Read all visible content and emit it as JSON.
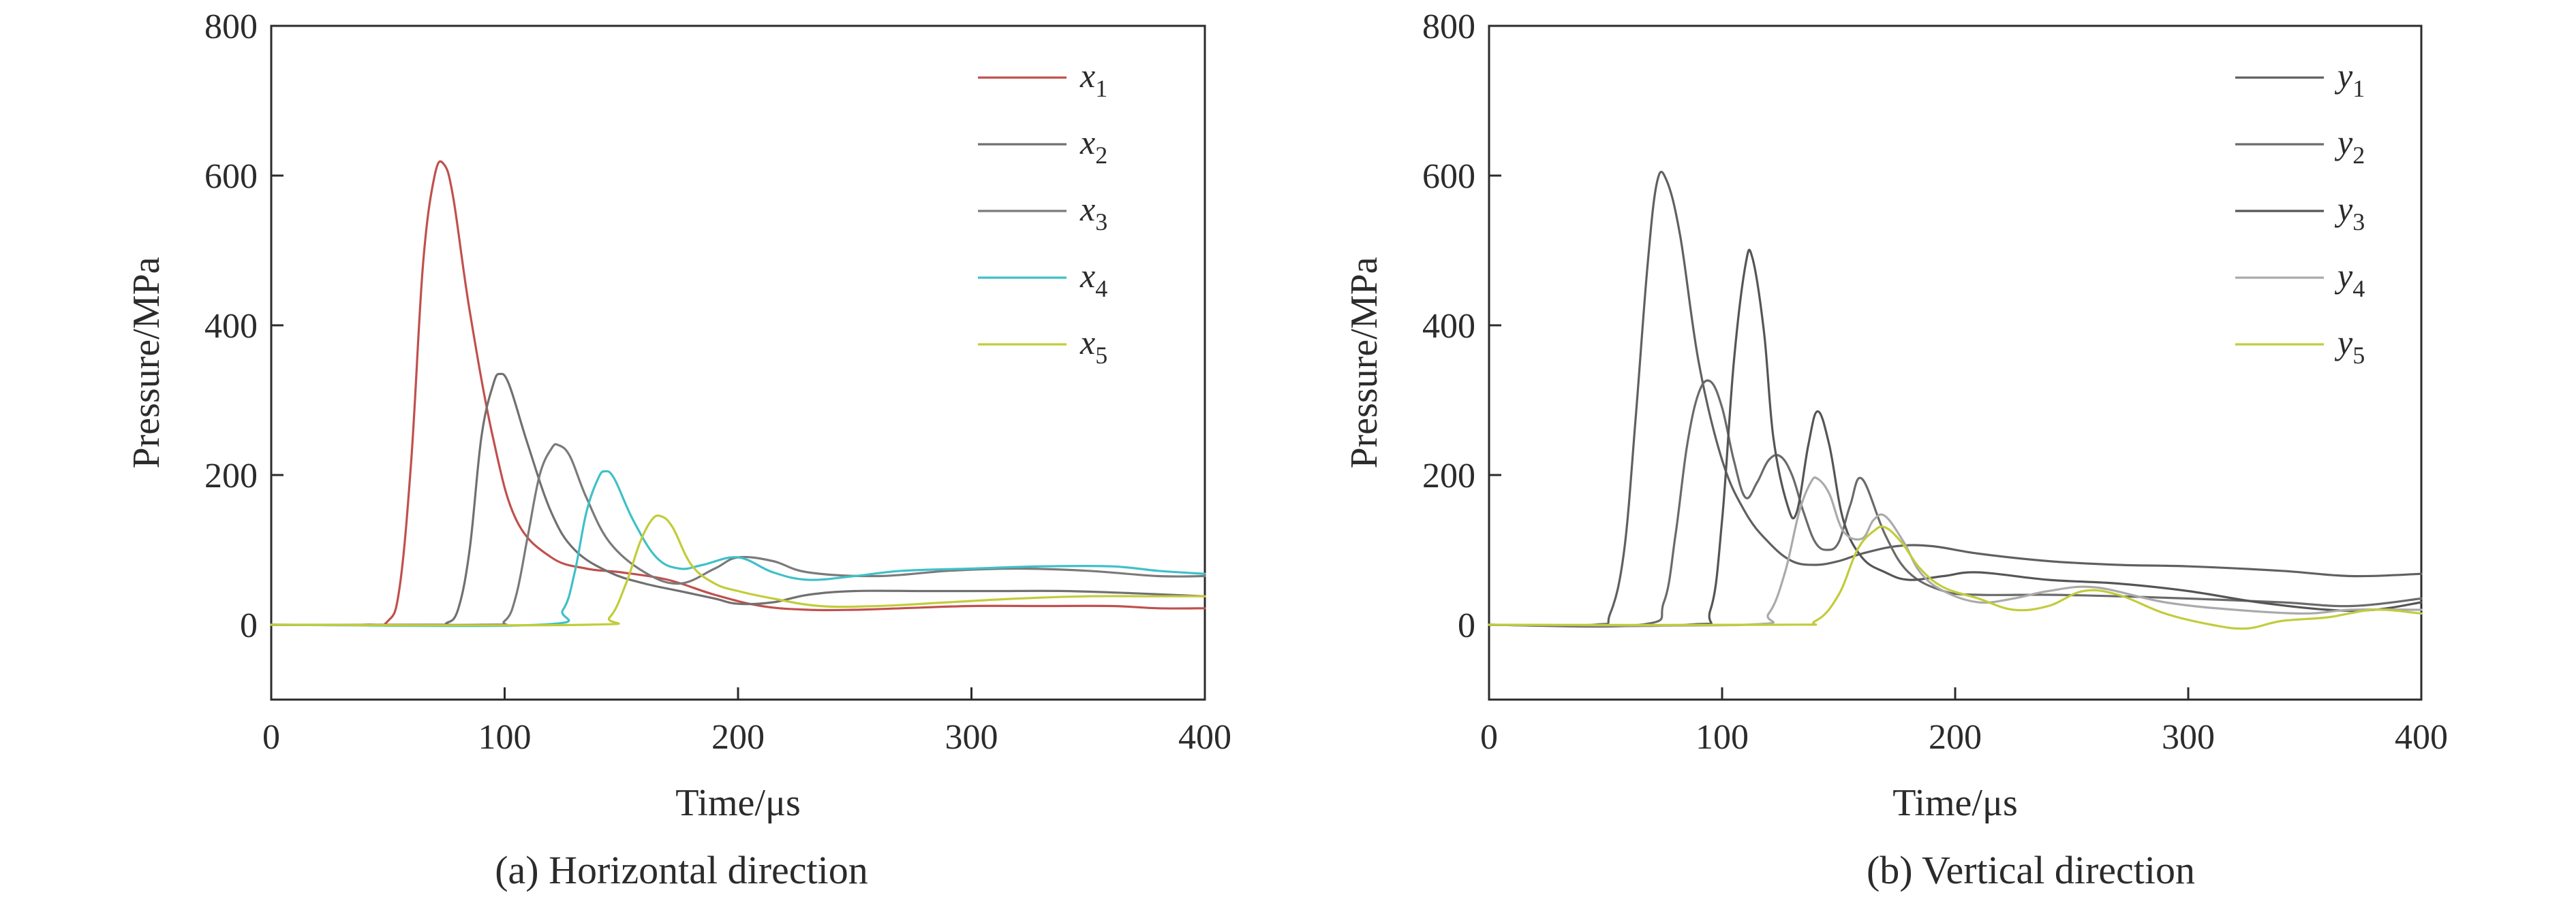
{
  "chart_data": [
    {
      "type": "line",
      "caption": "(a) Horizontal direction",
      "xlabel": "Time/μs",
      "ylabel": "Pressure/MPa",
      "xlim": [
        0,
        400
      ],
      "ylim": [
        -100,
        800
      ],
      "xticks": [
        0,
        100,
        200,
        300,
        400
      ],
      "yticks": [
        0,
        200,
        400,
        600,
        800
      ],
      "legend_position": "top-right",
      "series": [
        {
          "name": "x",
          "sub": "1",
          "color": "#c0504d",
          "x": [
            0,
            40,
            50,
            55,
            60,
            65,
            70,
            74,
            78,
            85,
            95,
            105,
            120,
            135,
            150,
            170,
            190,
            210,
            230,
            250,
            270,
            300,
            330,
            360,
            380,
            400
          ],
          "y": [
            0,
            0,
            5,
            50,
            220,
            480,
            600,
            615,
            570,
            420,
            250,
            140,
            90,
            75,
            70,
            60,
            40,
            25,
            20,
            20,
            22,
            25,
            25,
            25,
            22,
            22
          ]
        },
        {
          "name": "x",
          "sub": "2",
          "color": "#707070",
          "x": [
            0,
            70,
            75,
            80,
            85,
            90,
            95,
            98,
            102,
            110,
            120,
            130,
            145,
            160,
            175,
            190,
            200,
            215,
            230,
            250,
            280,
            310,
            340,
            370,
            400
          ],
          "y": [
            0,
            0,
            2,
            20,
            100,
            250,
            320,
            335,
            320,
            240,
            150,
            100,
            70,
            55,
            45,
            35,
            28,
            30,
            40,
            45,
            45,
            45,
            45,
            42,
            38
          ]
        },
        {
          "name": "x",
          "sub": "3",
          "color": "#7a7a7a",
          "x": [
            0,
            90,
            100,
            105,
            110,
            115,
            120,
            123,
            128,
            135,
            145,
            160,
            175,
            190,
            200,
            215,
            230,
            260,
            290,
            320,
            350,
            380,
            400
          ],
          "y": [
            0,
            0,
            5,
            40,
            120,
            200,
            235,
            240,
            225,
            170,
            110,
            70,
            55,
            75,
            90,
            85,
            70,
            65,
            72,
            75,
            72,
            65,
            65
          ]
        },
        {
          "name": "x",
          "sub": "4",
          "color": "#3fc0c8",
          "x": [
            0,
            115,
            125,
            130,
            135,
            140,
            143,
            147,
            155,
            165,
            175,
            185,
            200,
            215,
            230,
            250,
            270,
            300,
            330,
            360,
            380,
            400
          ],
          "y": [
            0,
            0,
            20,
            70,
            150,
            195,
            205,
            195,
            140,
            90,
            75,
            80,
            90,
            70,
            60,
            65,
            72,
            75,
            78,
            78,
            72,
            68
          ]
        },
        {
          "name": "x",
          "sub": "5",
          "color": "#c2cc3a",
          "x": [
            0,
            135,
            145,
            152,
            158,
            163,
            167,
            172,
            180,
            190,
            200,
            215,
            235,
            260,
            290,
            320,
            350,
            380,
            400
          ],
          "y": [
            0,
            0,
            10,
            55,
            110,
            140,
            145,
            130,
            80,
            55,
            45,
            35,
            25,
            25,
            30,
            35,
            38,
            38,
            38
          ]
        }
      ]
    },
    {
      "type": "line",
      "caption": "(b) Vertical direction",
      "xlabel": "Time/μs",
      "ylabel": "Pressure/MPa",
      "xlim": [
        0,
        400
      ],
      "ylim": [
        -100,
        800
      ],
      "xticks": [
        0,
        100,
        200,
        300,
        400
      ],
      "yticks": [
        0,
        200,
        400,
        600,
        800
      ],
      "legend_position": "top-right",
      "series": [
        {
          "name": "y",
          "sub": "1",
          "color": "#606060",
          "x": [
            0,
            45,
            52,
            58,
            63,
            68,
            72,
            76,
            82,
            90,
            100,
            110,
            120,
            130,
            140,
            150,
            160,
            175,
            190,
            210,
            240,
            270,
            300,
            340,
            370,
            400
          ],
          "y": [
            0,
            0,
            15,
            100,
            280,
            480,
            590,
            595,
            520,
            350,
            220,
            150,
            110,
            85,
            80,
            85,
            95,
            105,
            105,
            95,
            85,
            80,
            78,
            72,
            65,
            68
          ]
        },
        {
          "name": "y",
          "sub": "2",
          "color": "#6a6a6a",
          "x": [
            0,
            65,
            75,
            80,
            85,
            90,
            95,
            100,
            105,
            110,
            115,
            120,
            125,
            130,
            135,
            140,
            145,
            150,
            155,
            160,
            170,
            180,
            195,
            210,
            240,
            270,
            300,
            340,
            370,
            400
          ],
          "y": [
            0,
            0,
            30,
            120,
            240,
            310,
            325,
            290,
            220,
            170,
            190,
            220,
            225,
            200,
            150,
            110,
            100,
            110,
            160,
            195,
            120,
            70,
            45,
            40,
            40,
            38,
            35,
            30,
            25,
            35
          ]
        },
        {
          "name": "y",
          "sub": "3",
          "color": "#555555",
          "x": [
            0,
            85,
            95,
            100,
            105,
            110,
            113,
            118,
            122,
            128,
            132,
            137,
            141,
            146,
            152,
            160,
            170,
            180,
            195,
            210,
            240,
            270,
            300,
            330,
            360,
            380,
            400
          ],
          "y": [
            0,
            0,
            20,
            140,
            350,
            480,
            490,
            390,
            250,
            160,
            150,
            240,
            285,
            240,
            140,
            90,
            70,
            60,
            65,
            70,
            60,
            55,
            45,
            30,
            20,
            20,
            30
          ]
        },
        {
          "name": "y",
          "sub": "4",
          "color": "#aaaaaa",
          "x": [
            0,
            110,
            120,
            127,
            133,
            138,
            141,
            146,
            152,
            160,
            165,
            170,
            178,
            185,
            195,
            210,
            225,
            240,
            260,
            290,
            320,
            350,
            370,
            400
          ],
          "y": [
            0,
            0,
            15,
            70,
            150,
            190,
            195,
            175,
            125,
            115,
            140,
            145,
            110,
            70,
            45,
            30,
            35,
            45,
            50,
            30,
            20,
            15,
            20,
            20
          ]
        },
        {
          "name": "y",
          "sub": "5",
          "color": "#c2cc3a",
          "x": [
            0,
            125,
            140,
            150,
            158,
            165,
            170,
            177,
            185,
            195,
            210,
            225,
            240,
            255,
            270,
            290,
            310,
            325,
            340,
            360,
            380,
            400
          ],
          "y": [
            0,
            0,
            5,
            40,
            100,
            125,
            130,
            110,
            75,
            50,
            35,
            20,
            25,
            45,
            40,
            15,
            0,
            -5,
            5,
            10,
            20,
            15
          ]
        }
      ]
    }
  ]
}
